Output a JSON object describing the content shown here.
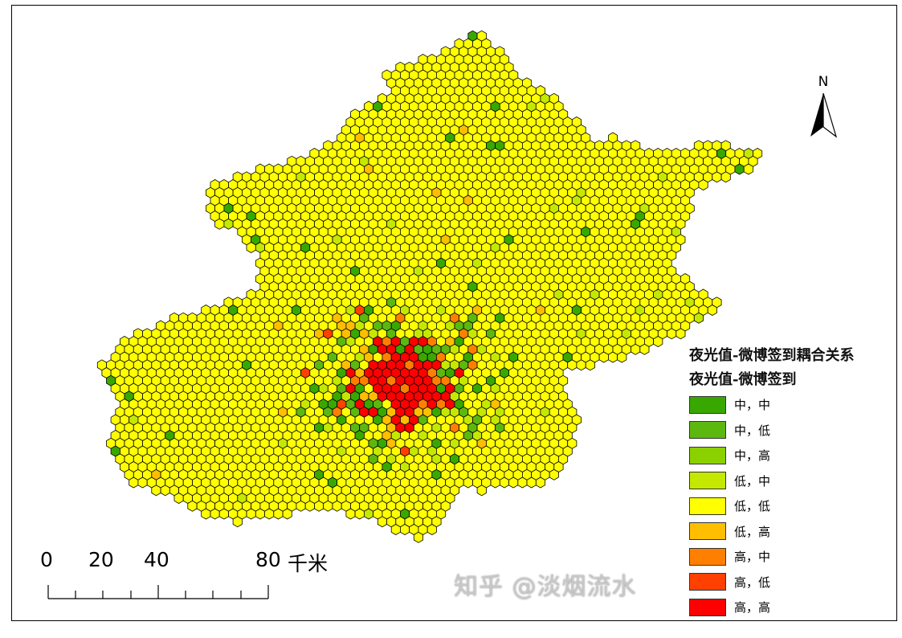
{
  "legend": {
    "title": "夜光值-微博签到耦合关系",
    "subtitle": "夜光值-微博签到",
    "items": [
      {
        "label": "中，中",
        "color": "#38a800"
      },
      {
        "label": "中，低",
        "color": "#5cb80e"
      },
      {
        "label": "中，高",
        "color": "#8bd100"
      },
      {
        "label": "低，中",
        "color": "#c5e800"
      },
      {
        "label": "低，低",
        "color": "#ffff00"
      },
      {
        "label": "低，高",
        "color": "#ffbe00"
      },
      {
        "label": "高，中",
        "color": "#ff8000"
      },
      {
        "label": "高，低",
        "color": "#ff4000"
      },
      {
        "label": "高，高",
        "color": "#ff0000"
      }
    ]
  },
  "scale_bar": {
    "labels": [
      "0",
      "20",
      "40",
      "80"
    ],
    "unit": "千米"
  },
  "north_arrow": {
    "label": "N"
  },
  "watermark": "知乎 @淡烟流水"
}
